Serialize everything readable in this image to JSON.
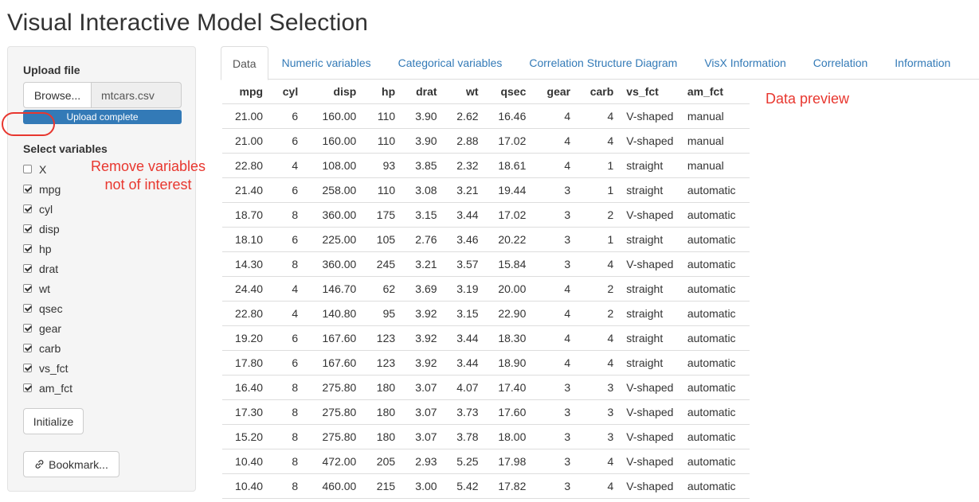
{
  "app": {
    "title": "Visual Interactive Model Selection"
  },
  "sidebar": {
    "upload_label": "Upload file",
    "browse_label": "Browse...",
    "file_name": "mtcars.csv",
    "upload_status": "Upload complete",
    "upload_progress_percent": 100,
    "select_label": "Select variables",
    "variables": [
      {
        "name": "X",
        "checked": false
      },
      {
        "name": "mpg",
        "checked": true
      },
      {
        "name": "cyl",
        "checked": true
      },
      {
        "name": "disp",
        "checked": true
      },
      {
        "name": "hp",
        "checked": true
      },
      {
        "name": "drat",
        "checked": true
      },
      {
        "name": "wt",
        "checked": true
      },
      {
        "name": "qsec",
        "checked": true
      },
      {
        "name": "gear",
        "checked": true
      },
      {
        "name": "carb",
        "checked": true
      },
      {
        "name": "vs_fct",
        "checked": true
      },
      {
        "name": "am_fct",
        "checked": true
      }
    ],
    "initialize_label": "Initialize",
    "bookmark_label": "Bookmark..."
  },
  "annotations": {
    "remove_line1": "Remove variables",
    "remove_line2": "not of interest",
    "preview": "Data preview",
    "color": "#e8372f"
  },
  "tabs": [
    {
      "label": "Data",
      "active": true
    },
    {
      "label": "Numeric variables",
      "active": false
    },
    {
      "label": "Categorical variables",
      "active": false
    },
    {
      "label": "Correlation Structure Diagram",
      "active": false
    },
    {
      "label": "VisX Information",
      "active": false
    },
    {
      "label": "Correlation",
      "active": false
    },
    {
      "label": "Information",
      "active": false
    }
  ],
  "colors": {
    "accent": "#337ab7"
  },
  "table": {
    "columns": [
      "mpg",
      "cyl",
      "disp",
      "hp",
      "drat",
      "wt",
      "qsec",
      "gear",
      "carb",
      "vs_fct",
      "am_fct"
    ],
    "rows": [
      [
        "21.00",
        "6",
        "160.00",
        "110",
        "3.90",
        "2.62",
        "16.46",
        "4",
        "4",
        "V-shaped",
        "manual"
      ],
      [
        "21.00",
        "6",
        "160.00",
        "110",
        "3.90",
        "2.88",
        "17.02",
        "4",
        "4",
        "V-shaped",
        "manual"
      ],
      [
        "22.80",
        "4",
        "108.00",
        "93",
        "3.85",
        "2.32",
        "18.61",
        "4",
        "1",
        "straight",
        "manual"
      ],
      [
        "21.40",
        "6",
        "258.00",
        "110",
        "3.08",
        "3.21",
        "19.44",
        "3",
        "1",
        "straight",
        "automatic"
      ],
      [
        "18.70",
        "8",
        "360.00",
        "175",
        "3.15",
        "3.44",
        "17.02",
        "3",
        "2",
        "V-shaped",
        "automatic"
      ],
      [
        "18.10",
        "6",
        "225.00",
        "105",
        "2.76",
        "3.46",
        "20.22",
        "3",
        "1",
        "straight",
        "automatic"
      ],
      [
        "14.30",
        "8",
        "360.00",
        "245",
        "3.21",
        "3.57",
        "15.84",
        "3",
        "4",
        "V-shaped",
        "automatic"
      ],
      [
        "24.40",
        "4",
        "146.70",
        "62",
        "3.69",
        "3.19",
        "20.00",
        "4",
        "2",
        "straight",
        "automatic"
      ],
      [
        "22.80",
        "4",
        "140.80",
        "95",
        "3.92",
        "3.15",
        "22.90",
        "4",
        "2",
        "straight",
        "automatic"
      ],
      [
        "19.20",
        "6",
        "167.60",
        "123",
        "3.92",
        "3.44",
        "18.30",
        "4",
        "4",
        "straight",
        "automatic"
      ],
      [
        "17.80",
        "6",
        "167.60",
        "123",
        "3.92",
        "3.44",
        "18.90",
        "4",
        "4",
        "straight",
        "automatic"
      ],
      [
        "16.40",
        "8",
        "275.80",
        "180",
        "3.07",
        "4.07",
        "17.40",
        "3",
        "3",
        "V-shaped",
        "automatic"
      ],
      [
        "17.30",
        "8",
        "275.80",
        "180",
        "3.07",
        "3.73",
        "17.60",
        "3",
        "3",
        "V-shaped",
        "automatic"
      ],
      [
        "15.20",
        "8",
        "275.80",
        "180",
        "3.07",
        "3.78",
        "18.00",
        "3",
        "3",
        "V-shaped",
        "automatic"
      ],
      [
        "10.40",
        "8",
        "472.00",
        "205",
        "2.93",
        "5.25",
        "17.98",
        "3",
        "4",
        "V-shaped",
        "automatic"
      ],
      [
        "10.40",
        "8",
        "460.00",
        "215",
        "3.00",
        "5.42",
        "17.82",
        "3",
        "4",
        "V-shaped",
        "automatic"
      ]
    ]
  }
}
